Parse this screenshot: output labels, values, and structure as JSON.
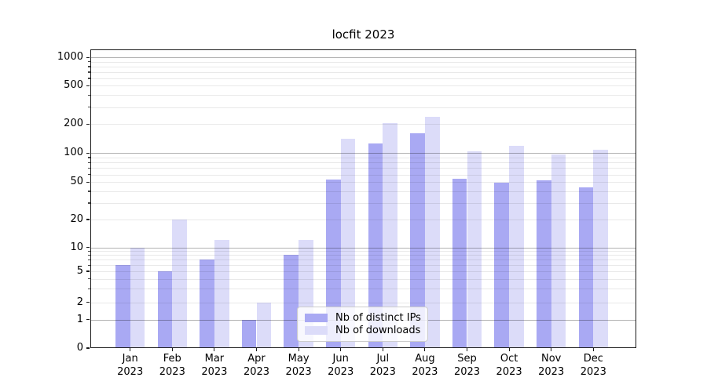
{
  "chart_data": {
    "type": "bar",
    "title": "locfit 2023",
    "x_months": [
      "Jan",
      "Feb",
      "Mar",
      "Apr",
      "May",
      "Jun",
      "Jul",
      "Aug",
      "Sep",
      "Oct",
      "Nov",
      "Dec"
    ],
    "x_year": "2023",
    "series": [
      {
        "name": "Nb of distinct IPs",
        "color": "#a9a9f3",
        "values": [
          6,
          5,
          7,
          1,
          8,
          53,
          125,
          160,
          54,
          49,
          52,
          44
        ]
      },
      {
        "name": "Nb of downloads",
        "color": "#dcdcf9",
        "values": [
          10,
          20,
          12,
          2,
          12,
          140,
          205,
          240,
          105,
          120,
          97,
          108
        ]
      }
    ],
    "y_ticks": [
      0,
      1,
      2,
      5,
      10,
      20,
      50,
      100,
      200,
      500,
      1000
    ],
    "y_major_gridlines": [
      1,
      10,
      100,
      1000
    ],
    "y_minor_gridlines": [
      3,
      4,
      6,
      7,
      8,
      9,
      30,
      40,
      60,
      70,
      80,
      90,
      300,
      400,
      600,
      700,
      800,
      900
    ],
    "yscale": "symlog",
    "ylim": [
      0,
      1250
    ],
    "grid": true,
    "legend_position": "lower center"
  }
}
